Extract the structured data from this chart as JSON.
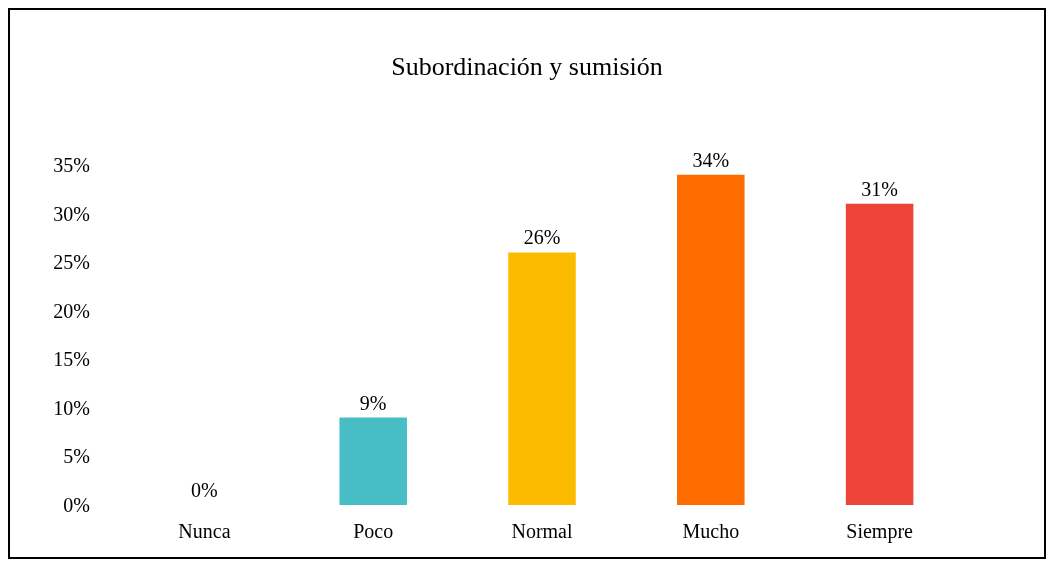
{
  "chart_data": {
    "type": "bar",
    "title": "Subordinación y sumisión",
    "categories": [
      "Nunca",
      "Poco",
      "Normal",
      "Mucho",
      "Siempre"
    ],
    "values": [
      0,
      9,
      26,
      34,
      31
    ],
    "colors": [
      "#2e64c0",
      "#47bec6",
      "#fdbb00",
      "#ff6d00",
      "#ec4436"
    ],
    "value_labels": [
      "0%",
      "9%",
      "26%",
      "34%",
      "31%"
    ],
    "ylim": [
      0,
      35
    ],
    "yticks": [
      {
        "value": 0,
        "label": "0%"
      },
      {
        "value": 5,
        "label": "5%"
      },
      {
        "value": 10,
        "label": "10%"
      },
      {
        "value": 15,
        "label": "15%"
      },
      {
        "value": 20,
        "label": "20%"
      },
      {
        "value": 25,
        "label": "25%"
      },
      {
        "value": 30,
        "label": "30%"
      },
      {
        "value": 35,
        "label": "35%"
      }
    ],
    "grid": false
  }
}
